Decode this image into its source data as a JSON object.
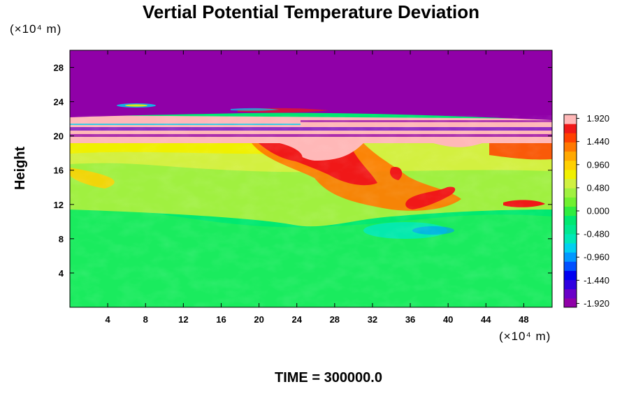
{
  "chart_data": {
    "type": "heatmap",
    "title": "Vertial Potential Temperature Deviation",
    "xlabel": "",
    "ylabel": "Height",
    "x_unit_label": "(×10⁴ m)",
    "y_unit_label": "(×10⁴ m)",
    "xlim": [
      0,
      51
    ],
    "ylim": [
      0,
      30
    ],
    "x_ticks": [
      4,
      8,
      12,
      16,
      20,
      24,
      28,
      32,
      36,
      40,
      44,
      48
    ],
    "y_ticks": [
      4,
      8,
      12,
      16,
      20,
      24,
      28
    ],
    "colorbar": {
      "min": -2.0,
      "max": 2.0,
      "tick_values": [
        1.92,
        1.44,
        0.96,
        0.48,
        0.0,
        -0.48,
        -0.96,
        -1.44,
        -1.92
      ],
      "tick_labels": [
        "1.920",
        "1.440",
        "0.960",
        "0.480",
        "0.000",
        "-0.480",
        "-0.960",
        "-1.440",
        "-1.920"
      ],
      "colors": [
        "#9000a8",
        "#6a00c8",
        "#3000e0",
        "#0000f0",
        "#0050ff",
        "#0098ff",
        "#00d0f0",
        "#00e8b8",
        "#00e890",
        "#00e870",
        "#30ec40",
        "#70f030",
        "#a0f040",
        "#d0f040",
        "#f0f000",
        "#ffd000",
        "#ffa800",
        "#ff7800",
        "#ff4000",
        "#f01818",
        "#ffb8b8"
      ]
    },
    "regions": [
      {
        "description": "lower layer",
        "y_range": [
          0,
          11
        ],
        "approx_value": -0.1
      },
      {
        "description": "middle layer",
        "y_range": [
          11,
          19
        ],
        "approx_value": 0.3
      },
      {
        "description": "warm core",
        "x_range": [
          20,
          42
        ],
        "y_range": [
          11,
          20
        ],
        "approx_value": 1.4
      },
      {
        "description": "top layer",
        "y_range": [
          19,
          22.5
        ],
        "approx_value": 1.9
      },
      {
        "description": "upper layer",
        "y_range": [
          22.5,
          30
        ],
        "approx_value": -1.95
      }
    ],
    "time_label": "TIME = 300000.0"
  }
}
